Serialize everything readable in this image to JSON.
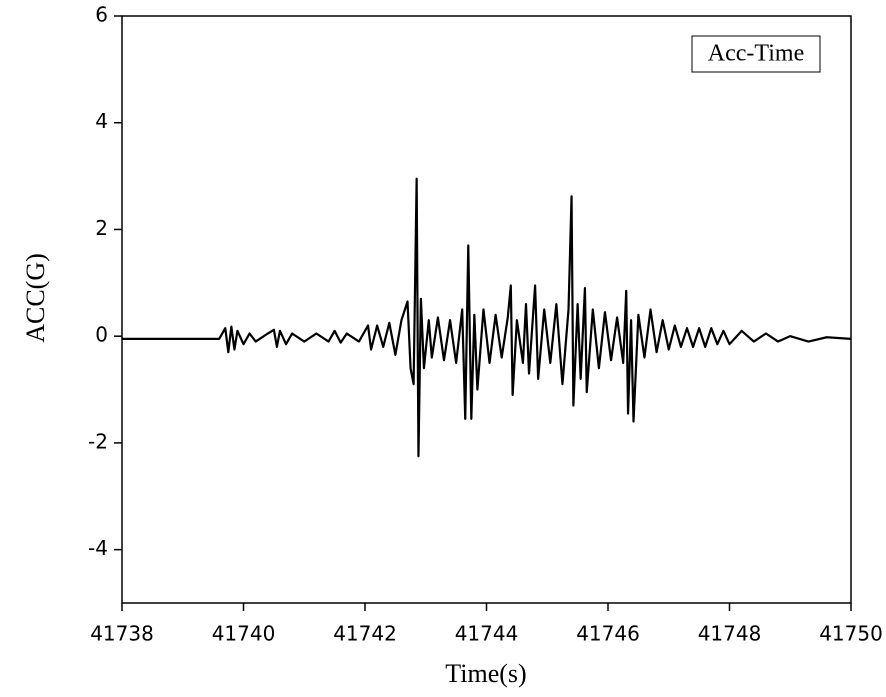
{
  "chart_data": {
    "type": "line",
    "xlabel": "Time(s)",
    "ylabel": "ACC(G)",
    "xlim": [
      41738,
      41750
    ],
    "xticks": [
      41738,
      41740,
      41742,
      41744,
      41746,
      41748,
      41750
    ],
    "ylim": [
      -5,
      6
    ],
    "yticks": [
      -4,
      -2,
      0,
      2,
      4,
      6
    ],
    "legend": "top-right",
    "x": [
      41738,
      41739,
      41739.6,
      41739.7,
      41739.75,
      41739.8,
      41739.85,
      41739.9,
      41740.0,
      41740.1,
      41740.2,
      41740.4,
      41740.5,
      41740.55,
      41740.6,
      41740.7,
      41740.8,
      41741.0,
      41741.2,
      41741.4,
      41741.5,
      41741.6,
      41741.7,
      41741.9,
      41742.05,
      41742.1,
      41742.2,
      41742.3,
      41742.4,
      41742.5,
      41742.6,
      41742.7,
      41742.75,
      41742.8,
      41742.85,
      41742.88,
      41742.92,
      41742.97,
      41743.05,
      41743.1,
      41743.2,
      41743.3,
      41743.4,
      41743.5,
      41743.6,
      41743.65,
      41743.7,
      41743.75,
      41743.8,
      41743.85,
      41743.95,
      41744.05,
      41744.15,
      41744.25,
      41744.35,
      41744.4,
      41744.43,
      41744.5,
      41744.6,
      41744.65,
      41744.7,
      41744.8,
      41744.85,
      41744.95,
      41745.05,
      41745.15,
      41745.25,
      41745.35,
      41745.4,
      41745.43,
      41745.5,
      41745.55,
      41745.62,
      41745.65,
      41745.75,
      41745.85,
      41745.95,
      41746.05,
      41746.15,
      41746.25,
      41746.3,
      41746.33,
      41746.38,
      41746.42,
      41746.5,
      41746.6,
      41746.7,
      41746.8,
      41746.9,
      41747.0,
      41747.1,
      41747.2,
      41747.3,
      41747.4,
      41747.5,
      41747.6,
      41747.7,
      41747.8,
      41747.9,
      41748.0,
      41748.2,
      41748.4,
      41748.6,
      41748.8,
      41749.0,
      41749.3,
      41749.6,
      41750
    ],
    "series": [
      {
        "name": "Acc-Time",
        "color": "#000000",
        "values": [
          -0.05,
          -0.05,
          -0.05,
          0.15,
          -0.3,
          0.18,
          -0.25,
          0.1,
          -0.15,
          0.05,
          -0.1,
          0.05,
          0.12,
          -0.2,
          0.1,
          -0.15,
          0.05,
          -0.1,
          0.05,
          -0.1,
          0.1,
          -0.12,
          0.05,
          -0.1,
          0.2,
          -0.25,
          0.2,
          -0.2,
          0.25,
          -0.35,
          0.3,
          0.65,
          -0.6,
          -0.9,
          2.95,
          -2.25,
          0.7,
          -0.6,
          0.3,
          -0.4,
          0.35,
          -0.45,
          0.3,
          -0.5,
          0.5,
          -1.55,
          1.7,
          -1.55,
          0.4,
          -1.0,
          0.5,
          -0.5,
          0.4,
          -0.4,
          0.35,
          0.95,
          -1.1,
          0.3,
          -0.5,
          0.6,
          -0.7,
          0.95,
          -0.8,
          0.5,
          -0.5,
          0.6,
          -0.9,
          0.5,
          2.62,
          -1.3,
          0.6,
          -0.8,
          0.9,
          -1.05,
          0.5,
          -0.6,
          0.45,
          -0.45,
          0.35,
          -0.5,
          0.85,
          -1.45,
          0.3,
          -1.6,
          0.4,
          -0.4,
          0.5,
          -0.3,
          0.3,
          -0.25,
          0.2,
          -0.2,
          0.15,
          -0.2,
          0.15,
          -0.2,
          0.15,
          -0.15,
          0.1,
          -0.15,
          0.1,
          -0.1,
          0.05,
          -0.1,
          0.0,
          -0.1,
          -0.02,
          -0.05
        ]
      }
    ]
  }
}
